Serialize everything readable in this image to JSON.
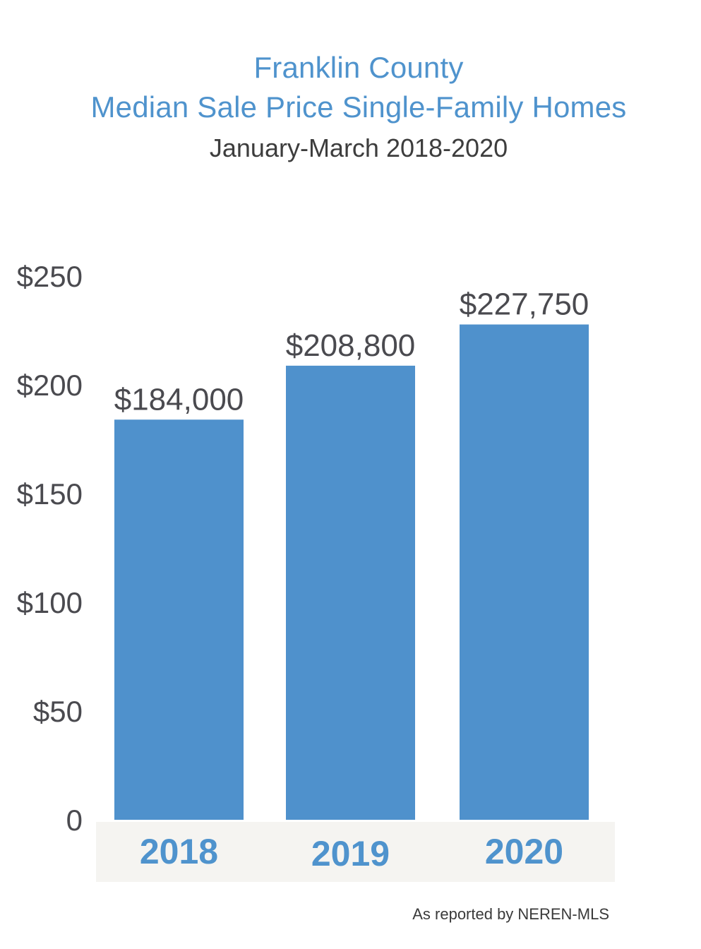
{
  "chart_data": {
    "type": "bar",
    "title_lines": [
      "Franklin County",
      "Median Sale Price Single-Family Homes"
    ],
    "subtitle": "January-March 2018-2020",
    "categories": [
      "2018",
      "2019",
      "2020"
    ],
    "values": [
      184000,
      208800,
      227750
    ],
    "data_labels": [
      "$184,000",
      "$208,800",
      "$227,750"
    ],
    "y_ticks": [
      "0",
      "$50",
      "$100",
      "$150",
      "$200",
      "$250"
    ],
    "ylim": [
      0,
      250000
    ],
    "xlabel": "",
    "ylabel": "",
    "grid": false,
    "legend": "none",
    "source_note": "As reported by NEREN-MLS",
    "colors": {
      "bar": "#4f91cc",
      "title": "#4f93cd",
      "category_label": "#4f93cd",
      "axis_band": "#f5f4f1",
      "text": "#4a4a4f"
    }
  }
}
